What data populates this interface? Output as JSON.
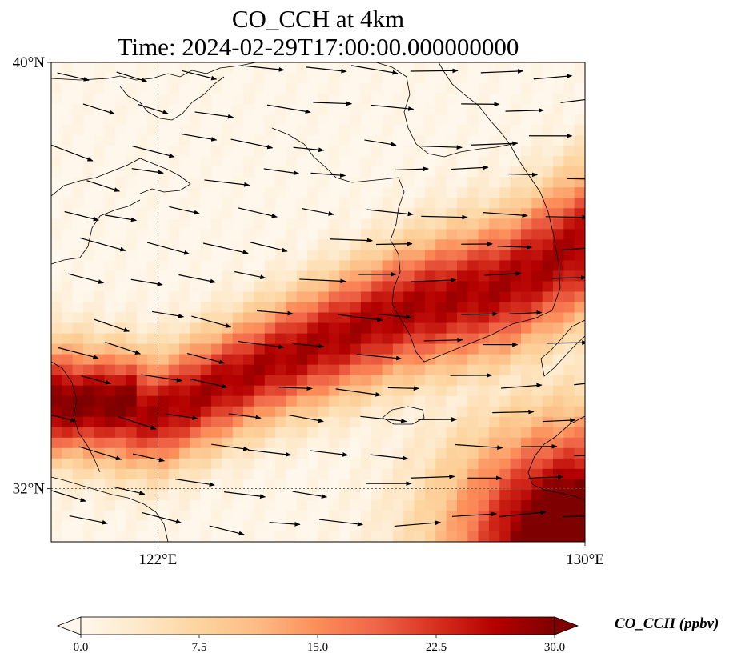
{
  "title": {
    "line1": "CO_CCH at 4km",
    "line2": "Time: 2024-02-29T17:00:00.000000000"
  },
  "map": {
    "projection": "PlateCarree",
    "lon_range": [
      120,
      130
    ],
    "lat_range": [
      31,
      40
    ],
    "gridlines": {
      "lon": [
        {
          "value": 122,
          "label": "122°E"
        },
        {
          "value": 130,
          "label": "130°E"
        }
      ],
      "lat": [
        {
          "value": 32,
          "label": "32°N"
        },
        {
          "value": 40,
          "label": "40°N"
        }
      ]
    },
    "field_name": "CO_CCH",
    "features": [
      "coastlines",
      "wind vectors"
    ]
  },
  "colorbar": {
    "label": "CO_CCH (ppbv)",
    "min": 0.0,
    "max": 30.0,
    "extend": "both",
    "ticks": [
      "0.0",
      "7.5",
      "15.0",
      "22.5",
      "30.0"
    ],
    "colormap": "OrRd",
    "colors": [
      "#fff7ec",
      "#fee8c8",
      "#fdd49e",
      "#fdbb84",
      "#fc8d59",
      "#ef6548",
      "#d7301f",
      "#b30000",
      "#7f0000"
    ]
  },
  "chart_data": {
    "type": "heatmap",
    "x_range": [
      120,
      130
    ],
    "y_range": [
      31,
      40
    ],
    "plume_band": {
      "description_points_lon_lat": [
        [
          120,
          33.7
        ],
        [
          122,
          33.4
        ],
        [
          124,
          34.3
        ],
        [
          126.5,
          35.3
        ],
        [
          128.5,
          35.8
        ],
        [
          130,
          36.6
        ]
      ],
      "peak_value": 27
    },
    "corner_maximum": {
      "lon_lat": [
        130,
        31
      ],
      "value": 30
    },
    "winds_direction": "westerly to west-northwesterly"
  }
}
